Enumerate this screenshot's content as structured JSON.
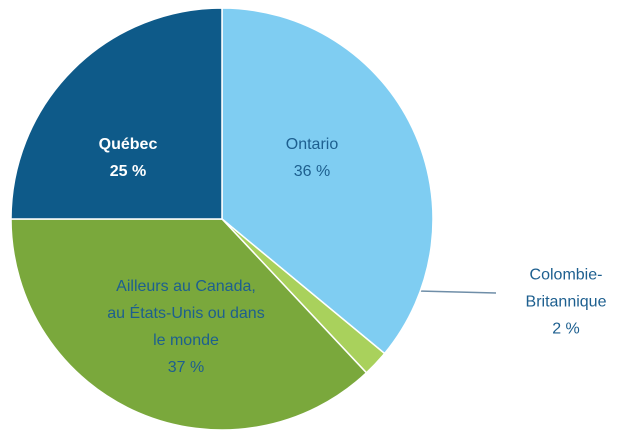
{
  "chart_data": {
    "type": "pie",
    "categories": [
      "Ontario",
      "Colombie-Britannique",
      "Ailleurs au Canada, au États-Unis ou dans le monde",
      "Québec"
    ],
    "values": [
      36,
      2,
      37,
      25
    ],
    "value_labels": [
      "36 %",
      "2 %",
      "37 %",
      "25 %"
    ],
    "colors": [
      "#7fcdf2",
      "#a9d15c",
      "#7aa83c",
      "#0e5a89"
    ],
    "start_angle": 0,
    "direction": "clockwise"
  }
}
